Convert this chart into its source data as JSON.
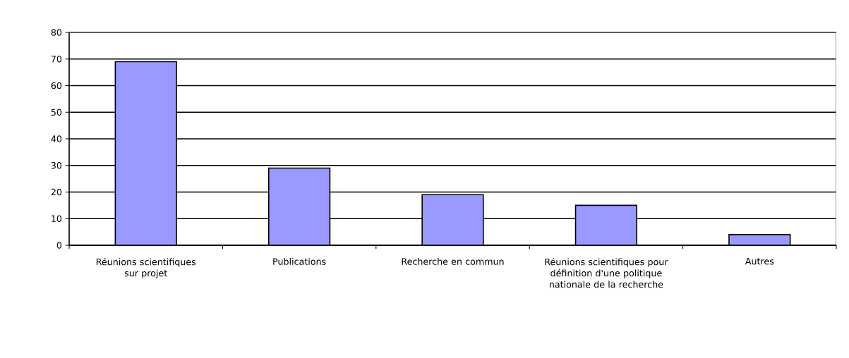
{
  "chart_data": {
    "type": "bar",
    "categories": [
      "Réunions scientifiques sur projet",
      "Publications",
      "Recherche en commun",
      "Réunions scientifiques pour définition d'une politique nationale de la recherche",
      "Autres"
    ],
    "values": [
      69,
      29,
      19,
      15,
      4
    ],
    "color": "#9999ff",
    "ylim": [
      0,
      80
    ],
    "yticks": [
      0,
      10,
      20,
      30,
      40,
      50,
      60,
      70,
      80
    ],
    "grid": "y"
  }
}
